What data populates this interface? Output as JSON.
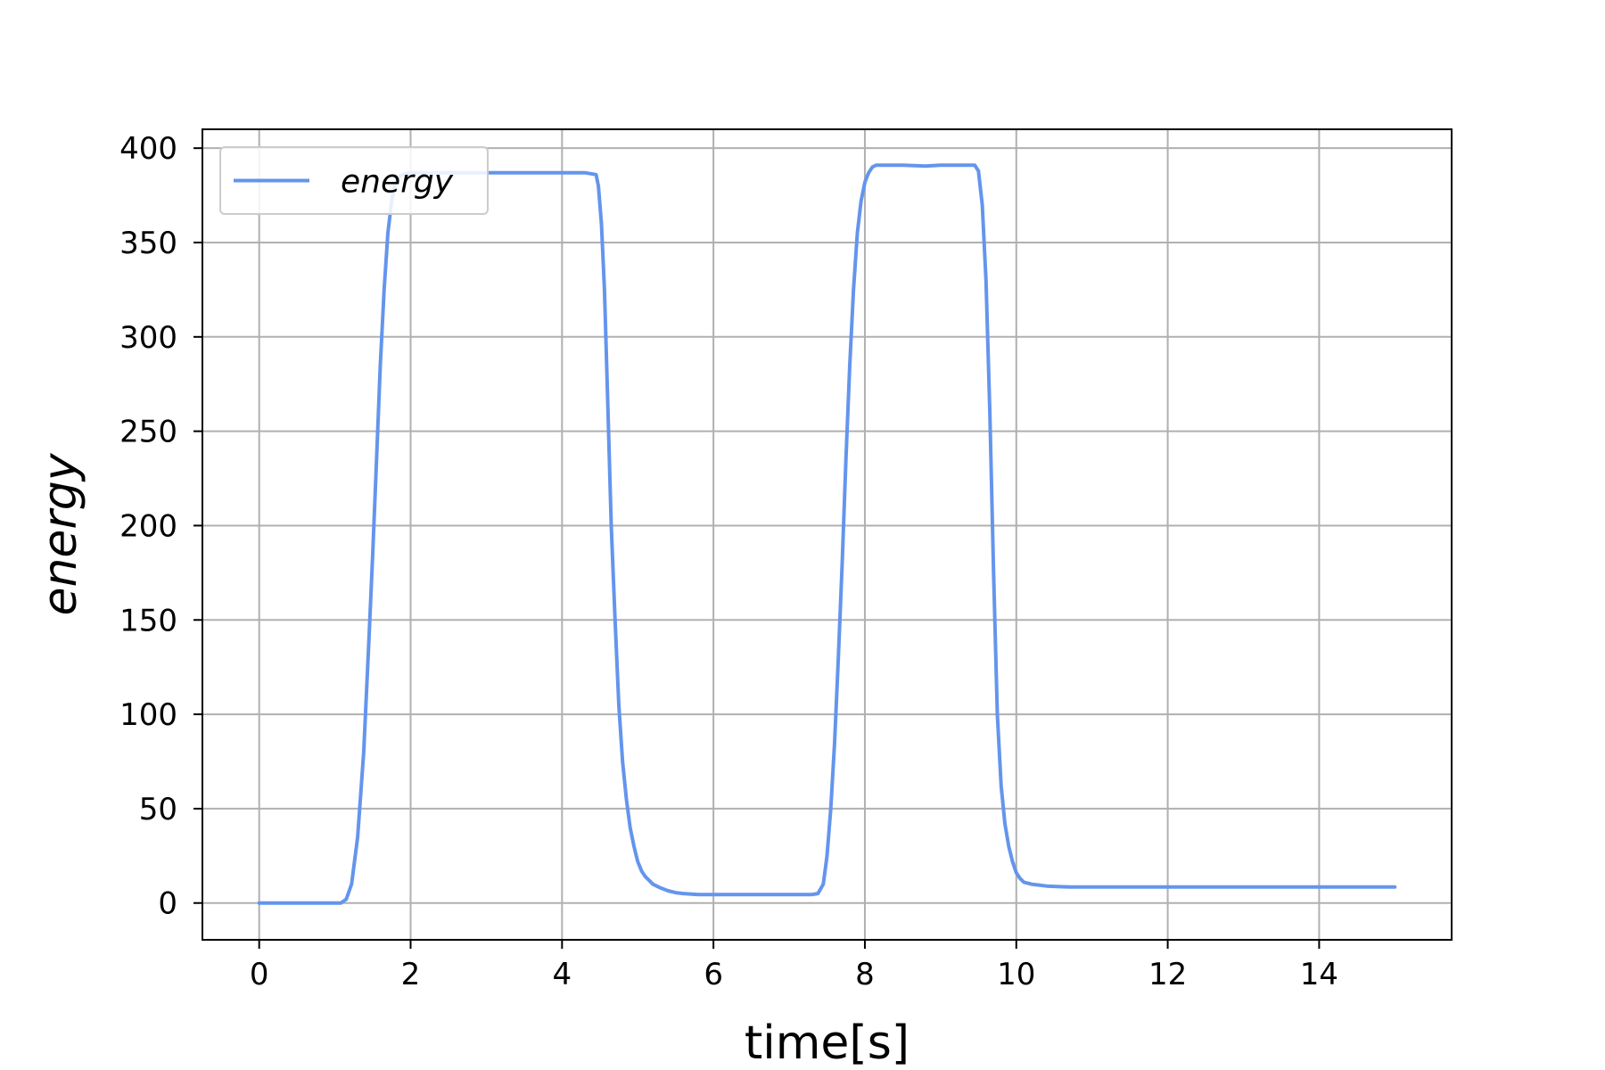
{
  "chart_data": {
    "type": "line",
    "title": "",
    "xlabel": "time[s]",
    "ylabel": "energy",
    "xlim": [
      -0.75,
      15.75
    ],
    "ylim": [
      -19.5,
      410
    ],
    "xticks": [
      0,
      2,
      4,
      6,
      8,
      10,
      12,
      14
    ],
    "yticks": [
      0,
      50,
      100,
      150,
      200,
      250,
      300,
      350,
      400
    ],
    "grid": true,
    "legend": {
      "position": "upper-left",
      "entries": [
        "energy"
      ]
    },
    "series": [
      {
        "name": "energy",
        "color": "#6495ED",
        "x": [
          0,
          0.2,
          0.5,
          0.8,
          1.0,
          1.08,
          1.15,
          1.22,
          1.3,
          1.38,
          1.45,
          1.5,
          1.55,
          1.6,
          1.65,
          1.7,
          1.75,
          1.8,
          1.85,
          1.9,
          1.95,
          2.0,
          2.05,
          2.1,
          2.2,
          2.5,
          3.0,
          3.5,
          4.0,
          4.3,
          4.45,
          4.48,
          4.52,
          4.56,
          4.6,
          4.65,
          4.7,
          4.75,
          4.8,
          4.85,
          4.9,
          4.95,
          5.0,
          5.05,
          5.1,
          5.2,
          5.3,
          5.4,
          5.5,
          5.6,
          5.8,
          6.0,
          6.5,
          7.0,
          7.3,
          7.38,
          7.45,
          7.5,
          7.55,
          7.6,
          7.65,
          7.7,
          7.75,
          7.8,
          7.85,
          7.9,
          7.95,
          8.0,
          8.05,
          8.1,
          8.15,
          8.2,
          8.3,
          8.5,
          8.8,
          9.0,
          9.2,
          9.45,
          9.5,
          9.55,
          9.6,
          9.65,
          9.7,
          9.75,
          9.8,
          9.85,
          9.9,
          9.95,
          10.0,
          10.05,
          10.1,
          10.2,
          10.3,
          10.4,
          10.5,
          10.7,
          11.0,
          12.0,
          13.0,
          14.0,
          15.0
        ],
        "y": [
          0,
          0,
          0,
          0,
          0,
          0,
          2,
          10,
          35,
          80,
          140,
          185,
          235,
          285,
          325,
          355,
          372,
          382,
          385,
          386,
          386.5,
          387,
          387,
          387,
          387,
          387,
          387,
          387,
          387,
          387,
          386,
          380,
          360,
          325,
          270,
          200,
          150,
          105,
          75,
          55,
          40,
          30,
          22,
          17,
          14,
          10,
          8,
          6.5,
          5.5,
          5,
          4.5,
          4.5,
          4.5,
          4.5,
          4.5,
          5,
          10,
          25,
          50,
          85,
          130,
          180,
          235,
          285,
          325,
          355,
          372,
          382,
          387,
          390,
          391,
          391,
          391,
          391,
          390.5,
          391,
          391,
          391,
          388,
          370,
          330,
          260,
          175,
          100,
          62,
          42,
          30,
          22,
          16,
          13,
          11,
          10,
          9.5,
          9,
          8.8,
          8.5,
          8.5,
          8.5,
          8.5,
          8.5,
          8.5
        ]
      }
    ]
  }
}
